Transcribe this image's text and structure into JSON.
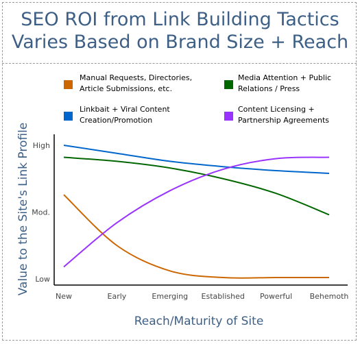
{
  "title_line1": "SEO ROI from Link Building Tactics",
  "title_line2": "Varies Based on Brand Size + Reach",
  "chart_data": {
    "type": "line",
    "title": "SEO ROI from Link Building Tactics Varies Based on Brand Size + Reach",
    "xlabel": "Reach/Maturity of Site",
    "ylabel": "Value to the Site's Link Profile",
    "categories": [
      "New",
      "Early",
      "Emerging",
      "Established",
      "Powerful",
      "Behemoth"
    ],
    "y_ticks": [
      "Low",
      "Mod.",
      "High"
    ],
    "ylim": [
      0,
      1
    ],
    "grid": false,
    "legend_position": "top",
    "series": [
      {
        "name": "Manual Requests, Directories, Article Submissions, etc.",
        "color": "#cc6600",
        "values": [
          0.63,
          0.25,
          0.06,
          0.01,
          0.01,
          0.01
        ]
      },
      {
        "name": "Media Attention + Public Relations / Press",
        "color": "#006600",
        "values": [
          0.91,
          0.88,
          0.83,
          0.75,
          0.64,
          0.48
        ]
      },
      {
        "name": "Linkbait + Viral Content Creation/Promotion",
        "color": "#0066cc",
        "values": [
          1.0,
          0.94,
          0.88,
          0.84,
          0.81,
          0.79
        ]
      },
      {
        "name": "Content Licensing + Partnership Agreements",
        "color": "#9933ff",
        "values": [
          0.09,
          0.42,
          0.66,
          0.82,
          0.9,
          0.91
        ]
      }
    ]
  }
}
